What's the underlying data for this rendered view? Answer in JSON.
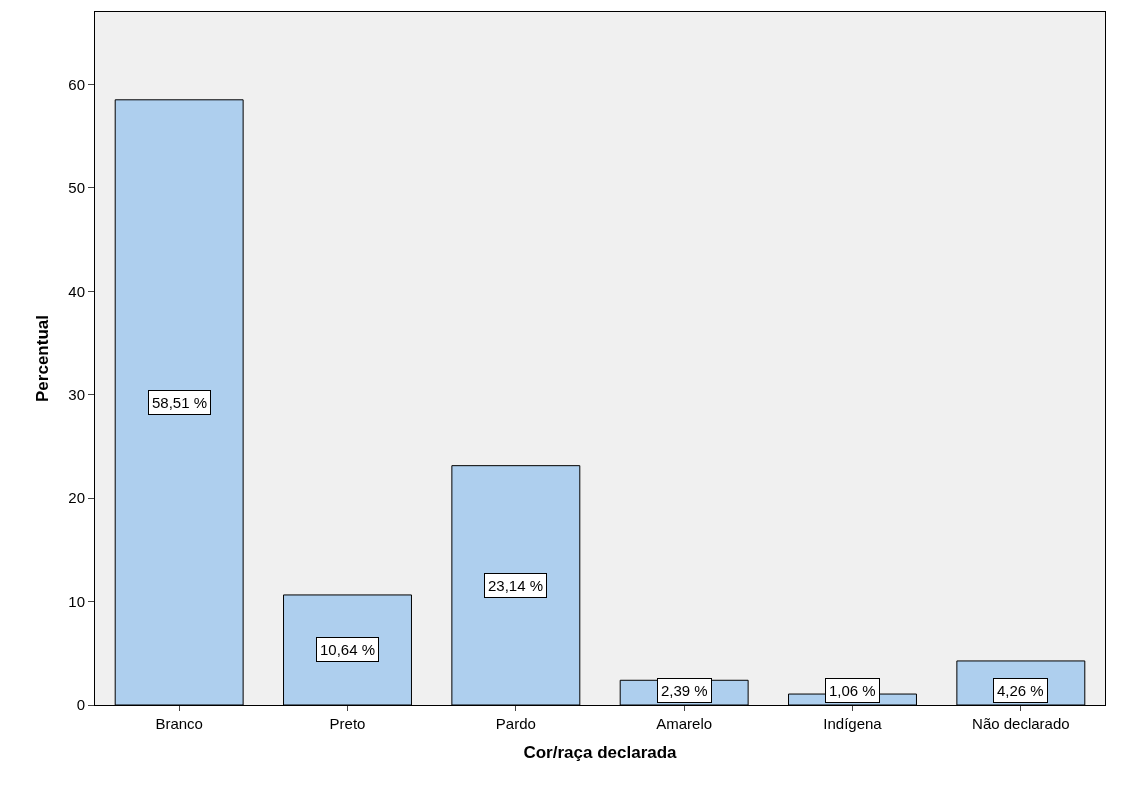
{
  "chart_data": {
    "type": "bar",
    "xlabel": "Cor/raça declarada",
    "ylabel": "Percentual",
    "categories": [
      "Branco",
      "Preto",
      "Pardo",
      "Amarelo",
      "Indígena",
      "Não declarado"
    ],
    "values": [
      58.51,
      10.64,
      23.14,
      2.39,
      1.06,
      4.26
    ],
    "value_labels": [
      "58,51 %",
      "10,64 %",
      "23,14 %",
      "2,39 %",
      "1,06 %",
      "4,26 %"
    ],
    "color": "#aecfee",
    "ylim": [
      0,
      67
    ],
    "yticks": [
      0,
      10,
      20,
      30,
      40,
      50,
      60
    ],
    "grid": false,
    "legend": false
  }
}
